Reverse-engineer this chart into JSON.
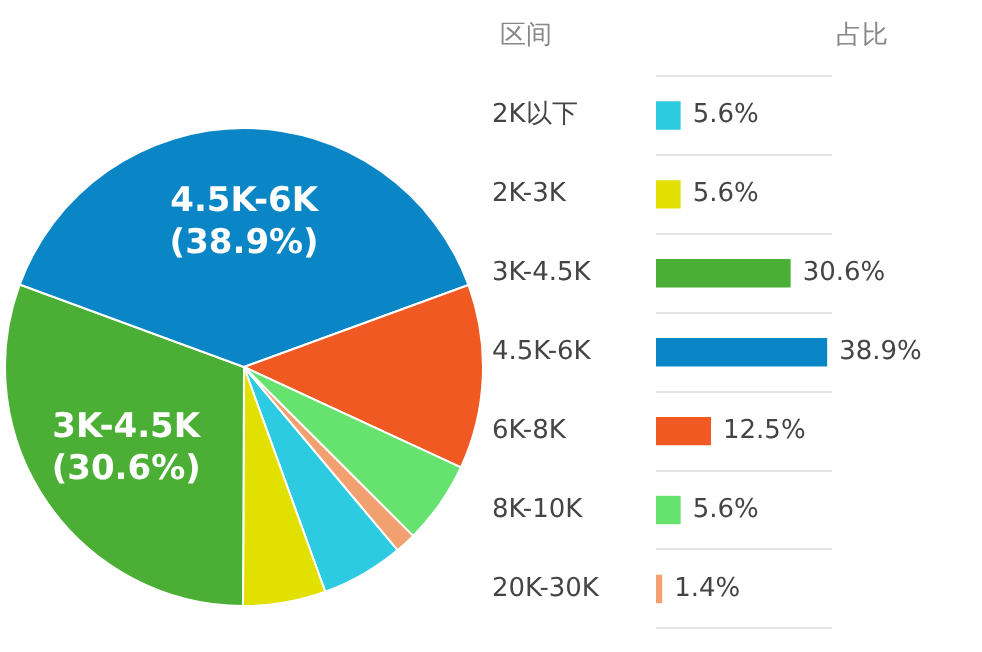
{
  "chart_data": [
    {
      "type": "pie",
      "categories": [
        null,
        null,
        "3K-4.5K",
        "4.5K-6K",
        null,
        null,
        null
      ],
      "values": [
        5.6,
        5.6,
        30.6,
        38.9,
        12.5,
        5.6,
        1.4
      ],
      "colors": [
        "#2ccbe2",
        "#e2e000",
        "#4caf35",
        "#0a86c6",
        "#f05a22",
        "#66e26e",
        "#f2a070"
      ],
      "value_labels": [
        null,
        null,
        "(30.6%)",
        "(38.9%)",
        null,
        null,
        null
      ]
    },
    {
      "type": "bar",
      "orientation": "horizontal",
      "tick_labels": "y",
      "grid": "y",
      "annotations": [
        "区间",
        "占比"
      ],
      "categories": [
        "2K以下",
        "2K-3K",
        "3K-4.5K",
        "4.5K-6K",
        "6K-8K",
        "8K-10K",
        "20K-30K"
      ],
      "values": [
        5.6,
        5.6,
        30.6,
        38.9,
        12.5,
        5.6,
        1.4
      ],
      "colors": [
        "#2ccbe2",
        "#e2e000",
        "#4caf35",
        "#0a86c6",
        "#f05a22",
        "#66e26e",
        "#f2a070"
      ],
      "xlim": [
        0,
        40
      ],
      "value_labels": [
        "5.6%",
        "5.6%",
        "30.6%",
        "38.9%",
        "12.5%",
        "5.6%",
        "1.4%"
      ]
    }
  ]
}
